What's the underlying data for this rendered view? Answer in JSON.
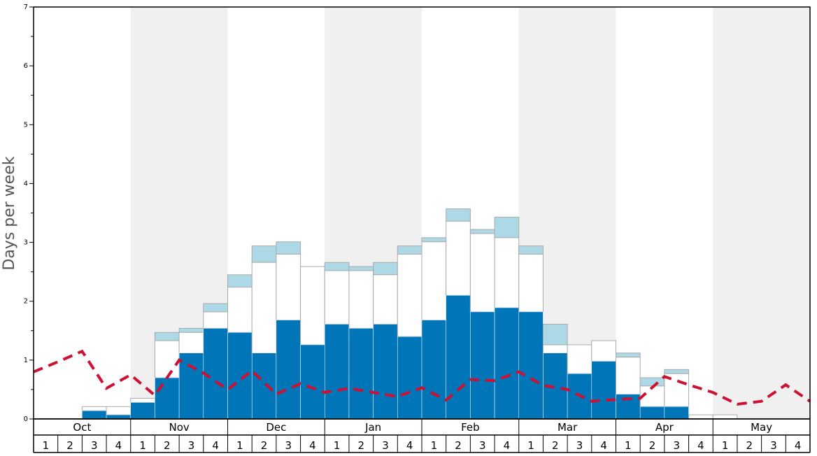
{
  "chart_data": {
    "type": "bar",
    "ylabel": "Days per week",
    "ylim": [
      0,
      7
    ],
    "yticks": [
      0,
      1,
      2,
      3,
      4,
      5,
      6,
      7
    ],
    "months": [
      "Oct",
      "Nov",
      "Dec",
      "Jan",
      "Feb",
      "Mar",
      "Apr",
      "May"
    ],
    "week_labels": [
      "1",
      "2",
      "3",
      "4"
    ],
    "shaded_months": [
      "Nov",
      "Jan",
      "Mar",
      "May"
    ],
    "colors": {
      "dark_segment": "#0075b8",
      "white_segment": "#ffffff",
      "light_segment": "#add8e6",
      "dashed_line": "#cc1133",
      "shade": "#f0f0f0",
      "bar_outline": "#aaaaaa"
    },
    "series": [
      {
        "kind": "stacked-bottom",
        "values": [
          0,
          0,
          0.14,
          0.07,
          0.28,
          0.7,
          1.12,
          1.54,
          1.47,
          1.12,
          1.68,
          1.26,
          1.61,
          1.54,
          1.61,
          1.4,
          1.68,
          2.1,
          1.82,
          1.89,
          1.82,
          1.12,
          0.77,
          0.98,
          0.42,
          0.21,
          0.21,
          0,
          0,
          0,
          0,
          0
        ]
      },
      {
        "kind": "stacked-middle-top",
        "values": [
          0,
          0,
          0.21,
          0.21,
          0.35,
          1.33,
          1.47,
          1.82,
          2.24,
          2.66,
          2.8,
          2.59,
          2.52,
          2.52,
          2.45,
          2.8,
          3.01,
          3.36,
          3.15,
          3.08,
          2.8,
          1.26,
          1.26,
          1.33,
          1.05,
          0.56,
          0.77,
          0.07,
          0.07,
          0,
          0,
          0
        ]
      },
      {
        "kind": "stacked-upper-top",
        "values": [
          0,
          0,
          0.21,
          0.21,
          0.35,
          1.47,
          1.54,
          1.96,
          2.45,
          2.94,
          3.01,
          2.59,
          2.66,
          2.59,
          2.66,
          2.94,
          3.08,
          3.57,
          3.22,
          3.43,
          2.94,
          1.61,
          1.26,
          1.33,
          1.12,
          0.7,
          0.84,
          0.07,
          0.07,
          0,
          0,
          0
        ]
      },
      {
        "kind": "dashed-line",
        "x_start": 0,
        "values": [
          0.8,
          0.97,
          1.15,
          0.52,
          0.75,
          0.4,
          1.0,
          0.78,
          0.5,
          0.82,
          0.42,
          0.6,
          0.45,
          0.52,
          0.45,
          0.38,
          0.53,
          0.32,
          0.67,
          0.65,
          0.8,
          0.57,
          0.5,
          0.3,
          0.33,
          0.35,
          0.72,
          0.58,
          0.45,
          0.25,
          0.3,
          0.58,
          0.3
        ]
      }
    ]
  }
}
